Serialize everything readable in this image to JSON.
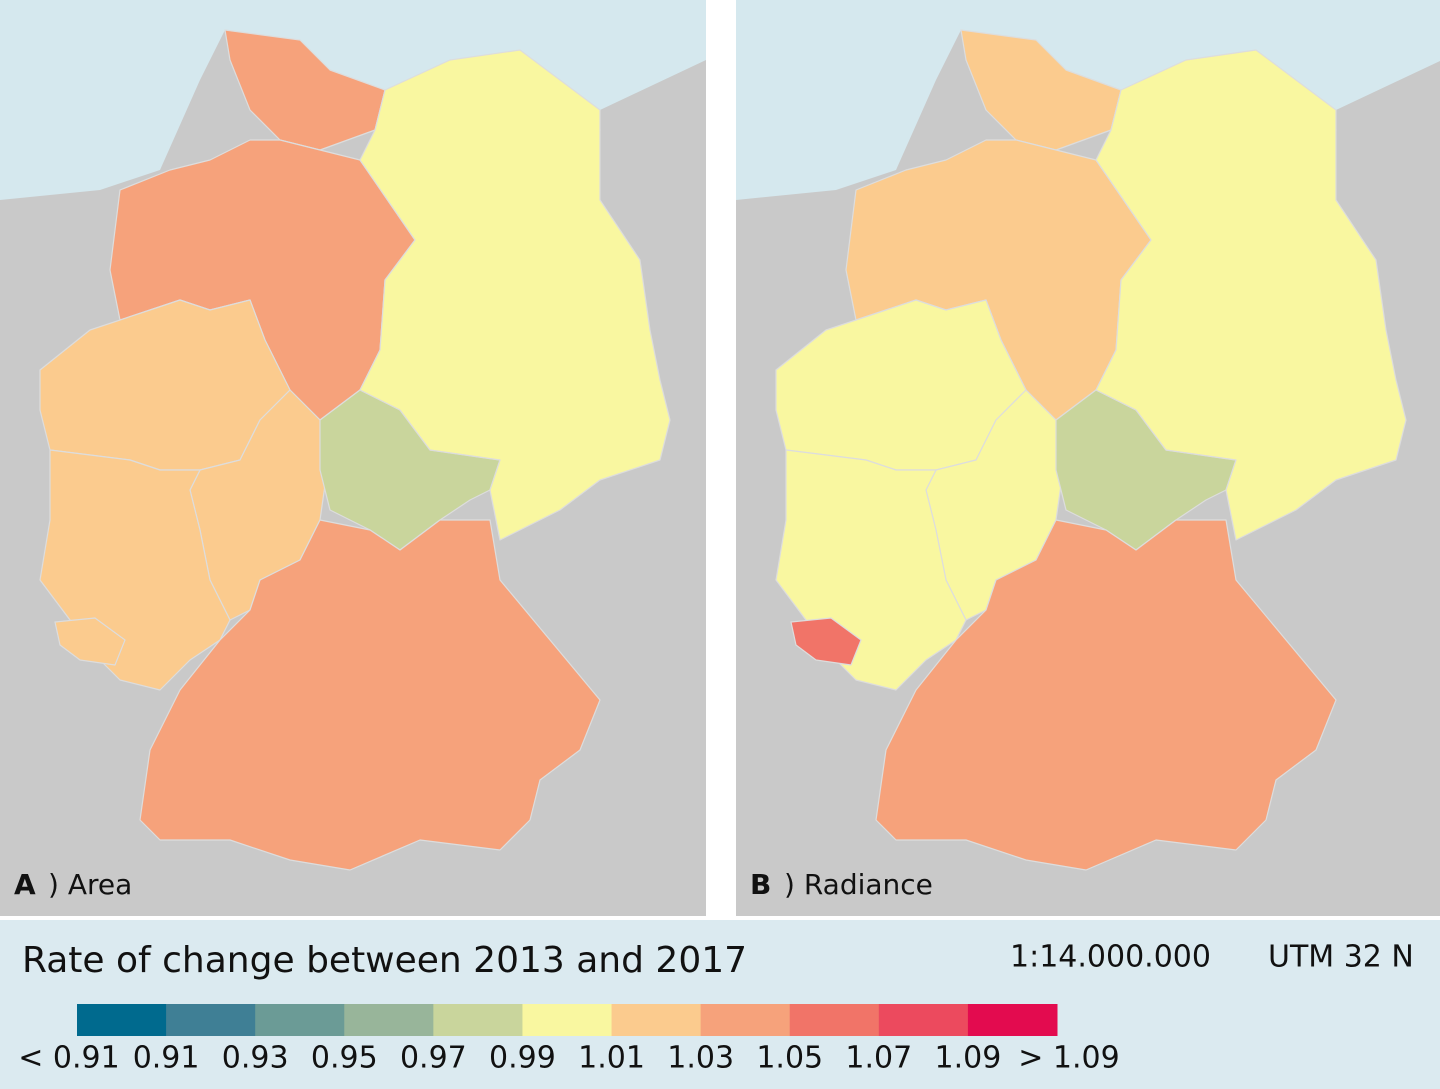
{
  "panels": [
    {
      "letter": "A",
      "label": ") Area"
    },
    {
      "letter": "B",
      "label": ") Radiance"
    }
  ],
  "legend": {
    "title": "Rate of change between 2013 and 2017",
    "scale": "1:14.000.000",
    "projection": "UTM 32 N",
    "colors": [
      "#006a8e",
      "#3f7f95",
      "#6b9b96",
      "#98b59a",
      "#c9d59c",
      "#f9f7a0",
      "#fbcb8e",
      "#f6a27b",
      "#f17468",
      "#ec4a5e",
      "#e30b4f"
    ],
    "labels": [
      "< 0.91",
      "0.91",
      "0.93",
      "0.95",
      "0.97",
      "0.99",
      "1.01",
      "1.03",
      "1.05",
      "1.07",
      "1.09",
      "> 1.09"
    ]
  }
}
